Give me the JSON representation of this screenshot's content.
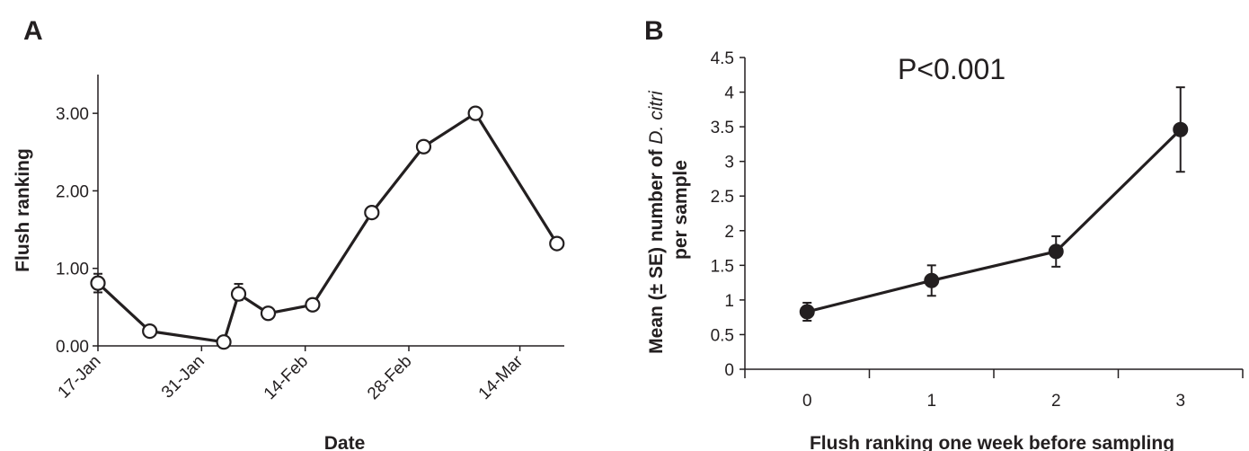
{
  "chart_data": [
    {
      "type": "line",
      "panel": "A",
      "title": "",
      "xlabel": "Date",
      "ylabel": "Flush ranking",
      "ylim": [
        0,
        3.5
      ],
      "yticks": [
        "0.00",
        "1.00",
        "2.00",
        "3.00"
      ],
      "xticks": [
        "17-Jan",
        "31-Jan",
        "14-Feb",
        "28-Feb",
        "14-Mar"
      ],
      "xlim": [
        "2012-01-17",
        "2012-03-20"
      ],
      "marker": "open-circle",
      "grid": false,
      "series": [
        {
          "x": [
            "2012-01-17",
            "2012-01-24",
            "2012-02-03",
            "2012-02-05",
            "2012-02-09",
            "2012-02-15",
            "2012-02-23",
            "2012-03-01",
            "2012-03-08",
            "2012-03-19"
          ],
          "values": [
            0.81,
            0.19,
            0.05,
            0.67,
            0.42,
            0.53,
            1.72,
            2.57,
            3.0,
            1.32
          ],
          "error_upper": [
            0.12,
            0.0,
            0.0,
            0.13,
            0.0,
            0.0,
            0.0,
            0.0,
            0.0,
            0.0
          ],
          "error_lower": [
            0.12,
            0.0,
            0.0,
            0.08,
            0.0,
            0.0,
            0.0,
            0.0,
            0.0,
            0.0
          ]
        }
      ]
    },
    {
      "type": "line",
      "panel": "B",
      "title": "",
      "annotation": "P<0.001",
      "xlabel": "Flush ranking one week before sampling",
      "ylabel_line1": "Mean (± SE) number of ",
      "ylabel_italic": "D. citri",
      "ylabel_line2": "per sample",
      "ylim": [
        0,
        4.5
      ],
      "yticks": [
        "0",
        "0.5",
        "1",
        "1.5",
        "2",
        "2.5",
        "3",
        "3.5",
        "4",
        "4.5"
      ],
      "categories": [
        "0",
        "1",
        "2",
        "3"
      ],
      "marker": "filled-circle",
      "grid": false,
      "series": [
        {
          "values": [
            0.83,
            1.28,
            1.7,
            3.46
          ],
          "error_upper": [
            0.13,
            0.22,
            0.22,
            0.61
          ],
          "error_lower": [
            0.13,
            0.22,
            0.22,
            0.61
          ]
        }
      ]
    }
  ]
}
